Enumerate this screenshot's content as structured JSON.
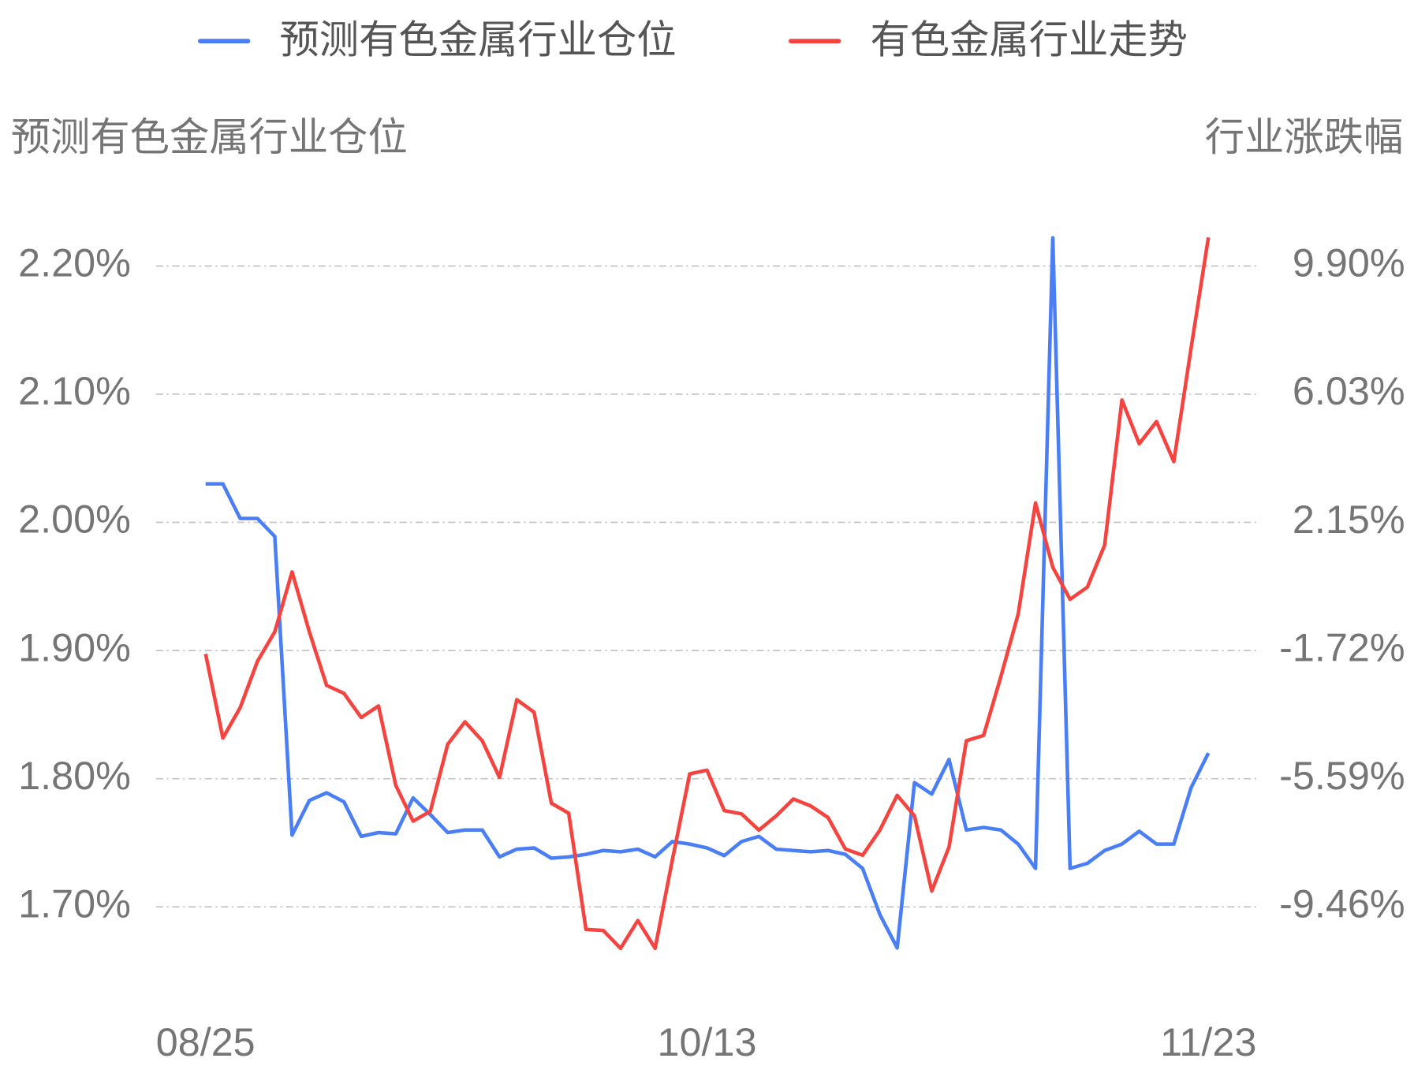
{
  "chart_data": {
    "type": "line",
    "y_label": "预测有色金属行业仓位",
    "y2_label": "行业涨跌幅",
    "categories": [
      "08/25",
      null,
      null,
      null,
      null,
      null,
      null,
      null,
      null,
      null,
      null,
      null,
      null,
      null,
      null,
      null,
      null,
      null,
      null,
      null,
      null,
      null,
      null,
      null,
      null,
      null,
      null,
      null,
      null,
      "10/13",
      null,
      null,
      null,
      null,
      null,
      null,
      null,
      null,
      null,
      null,
      null,
      null,
      null,
      null,
      null,
      null,
      null,
      null,
      null,
      null,
      null,
      null,
      null,
      null,
      null,
      null,
      null,
      null,
      "11/23"
    ],
    "series": [
      {
        "name": "预测有色金属行业仓位",
        "color": "#4a7ef5",
        "axis": "y",
        "values": [
          2.03,
          2.03,
          2.003,
          2.003,
          1.989,
          1.756,
          1.783,
          1.789,
          1.782,
          1.755,
          1.758,
          1.757,
          1.785,
          1.772,
          1.758,
          1.76,
          1.76,
          1.739,
          1.745,
          1.746,
          1.738,
          1.739,
          1.741,
          1.744,
          1.743,
          1.745,
          1.739,
          1.751,
          1.749,
          1.746,
          1.74,
          1.751,
          1.755,
          1.745,
          1.744,
          1.743,
          1.744,
          1.741,
          1.73,
          1.694,
          1.668,
          1.797,
          1.788,
          1.815,
          1.76,
          1.762,
          1.76,
          1.749,
          1.73,
          2.222,
          1.73,
          1.734,
          1.744,
          1.749,
          1.759,
          1.749,
          1.749,
          1.793,
          1.82
        ]
      },
      {
        "name": "有色金属行业走势",
        "color": "#f5443f",
        "axis": "y2",
        "values": [
          -1.82,
          -4.36,
          -3.44,
          -2.04,
          -1.15,
          0.66,
          -1.15,
          -2.77,
          -3.01,
          -3.74,
          -3.39,
          -5.79,
          -6.87,
          -6.57,
          -4.55,
          -3.87,
          -4.44,
          -5.55,
          -3.2,
          -3.58,
          -6.33,
          -6.63,
          -10.14,
          -10.17,
          -10.71,
          -9.87,
          -10.71,
          -8.03,
          -5.44,
          -5.33,
          -6.55,
          -6.65,
          -7.14,
          -6.71,
          -6.2,
          -6.41,
          -6.76,
          -7.71,
          -7.9,
          -7.14,
          -6.09,
          -6.71,
          -8.98,
          -7.65,
          -4.44,
          -4.28,
          -2.5,
          -0.61,
          2.74,
          0.8,
          -0.17,
          0.2,
          1.47,
          5.85,
          4.53,
          5.2,
          3.99,
          7.42,
          10.76
        ]
      }
    ],
    "ylim": [
      1.65,
      2.25
    ],
    "yticks": [
      {
        "value": 1.7,
        "label": "1.70%"
      },
      {
        "value": 1.8,
        "label": "1.80%"
      },
      {
        "value": 1.9,
        "label": "1.90%"
      },
      {
        "value": 2.0,
        "label": "2.00%"
      },
      {
        "value": 2.1,
        "label": "2.10%"
      },
      {
        "value": 2.2,
        "label": "2.20%"
      }
    ],
    "y2lim": [
      -11.395,
      11.835
    ],
    "y2ticks": [
      {
        "value": -9.46,
        "label": "-9.46%"
      },
      {
        "value": -5.59,
        "label": "-5.59%"
      },
      {
        "value": -1.72,
        "label": "-1.72%"
      },
      {
        "value": 2.15,
        "label": "2.15%"
      },
      {
        "value": 6.03,
        "label": "6.03%"
      },
      {
        "value": 9.9,
        "label": "9.90%"
      }
    ],
    "grid": true,
    "legend": "top"
  }
}
